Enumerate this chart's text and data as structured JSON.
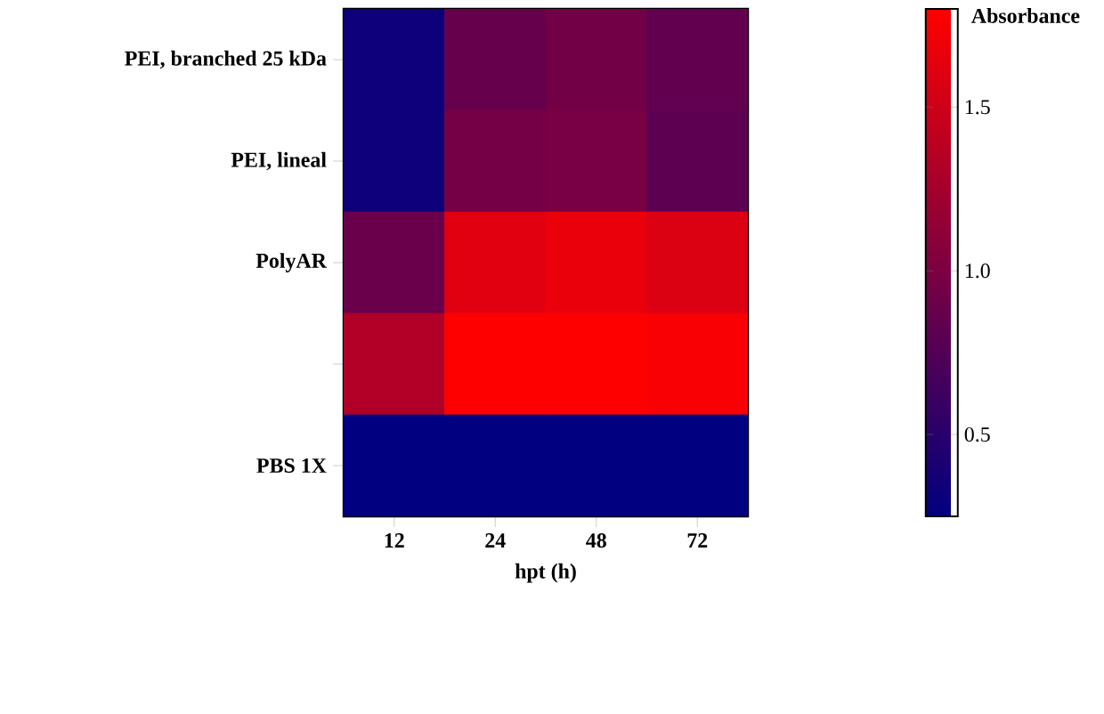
{
  "chart_data": {
    "type": "heatmap",
    "xlabel": "hpt (h)",
    "clabel": "Absorbance",
    "categories": [
      "12",
      "24",
      "48",
      "72"
    ],
    "y_categories": [
      "PEI, branched 25 kDa",
      "PEI, lineal",
      "PolyAR",
      null,
      "PBS 1X"
    ],
    "cells": [
      [
        0.33,
        0.87,
        0.93,
        0.84
      ],
      [
        0.33,
        0.96,
        0.98,
        0.82
      ],
      [
        0.89,
        1.61,
        1.66,
        1.57
      ],
      [
        1.32,
        1.8,
        1.8,
        1.75
      ],
      [
        0.25,
        0.25,
        0.25,
        0.25
      ]
    ],
    "clim": [
      0.25,
      1.8
    ],
    "cticks": [
      0.5,
      {
        "value": 1.0,
        "label": "1.0"
      },
      1.5
    ]
  }
}
